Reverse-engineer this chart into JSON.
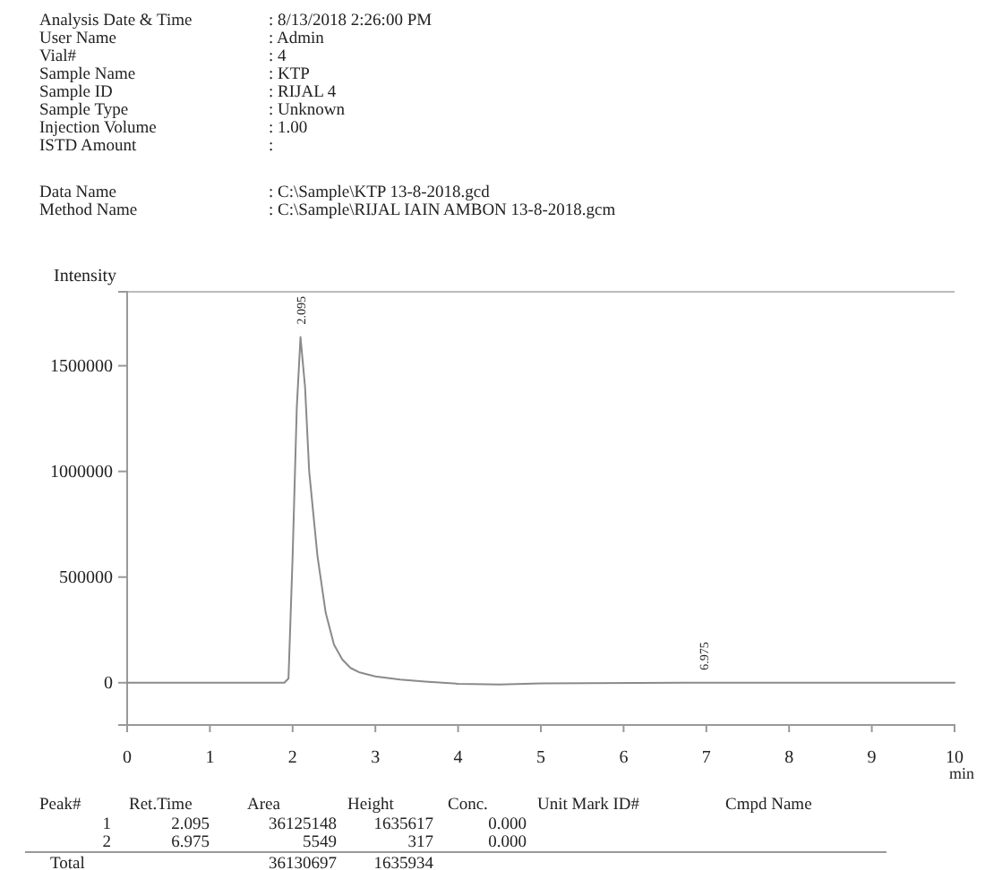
{
  "chart_data": {
    "type": "line",
    "ylabel": "Intensity",
    "xlabel": "min",
    "x": [
      0,
      1.9,
      1.95,
      2.0,
      2.05,
      2.095,
      2.15,
      2.2,
      2.3,
      2.4,
      2.5,
      2.6,
      2.7,
      2.8,
      3.0,
      3.3,
      3.6,
      4.0,
      4.5,
      5.0,
      6.9,
      6.95,
      6.975,
      7.0,
      7.05,
      10
    ],
    "series": [
      {
        "color": "#8a8a8a",
        "values": [
          0,
          0,
          20000,
          600000,
          1300000,
          1635617,
          1400000,
          1000000,
          600000,
          330000,
          180000,
          110000,
          70000,
          50000,
          30000,
          15000,
          5000,
          -5000,
          -8000,
          -3000,
          0,
          300,
          317,
          300,
          0,
          0
        ]
      }
    ],
    "xlim": [
      0,
      10
    ],
    "xticks": [
      0,
      1,
      2,
      3,
      4,
      5,
      6,
      7,
      8,
      9,
      10
    ],
    "ylim": [
      -200000,
      1850000
    ],
    "yticks": [
      0,
      500000,
      1000000,
      1500000
    ],
    "grid": false,
    "marker": "none",
    "line_style": "solid",
    "annotations": [
      {
        "text": "2.095",
        "x": 2.095,
        "y": 1635617
      },
      {
        "text": "6.975",
        "x": 6.975,
        "y": 317
      },
      "Analysis Date & Time",
      ": 8/13/2018 2:26:00 PM",
      "User Name",
      ": Admin",
      "Vial#",
      ": 4",
      "Sample Name",
      ": KTP",
      "Sample ID",
      ": RIJAL 4",
      "Sample Type",
      ": Unknown",
      "Injection Volume",
      ": 1.00",
      "ISTD Amount",
      ":",
      "Data Name",
      ": C:\\Sample\\KTP 13-8-2018.gcd",
      "Method Name",
      ": C:\\Sample\\RIJAL IAIN AMBON 13-8-2018.gcm",
      "Peak#",
      "Ret.Time",
      "Area",
      "Height",
      "Conc.",
      "Unit Mark ID#",
      "Cmpd Name",
      "1",
      "2.095",
      "36125148",
      "1635617",
      "0.000",
      "2",
      "6.975",
      "5549",
      "317",
      "0.000",
      "Total",
      "36130697",
      "1635934"
    ]
  }
}
